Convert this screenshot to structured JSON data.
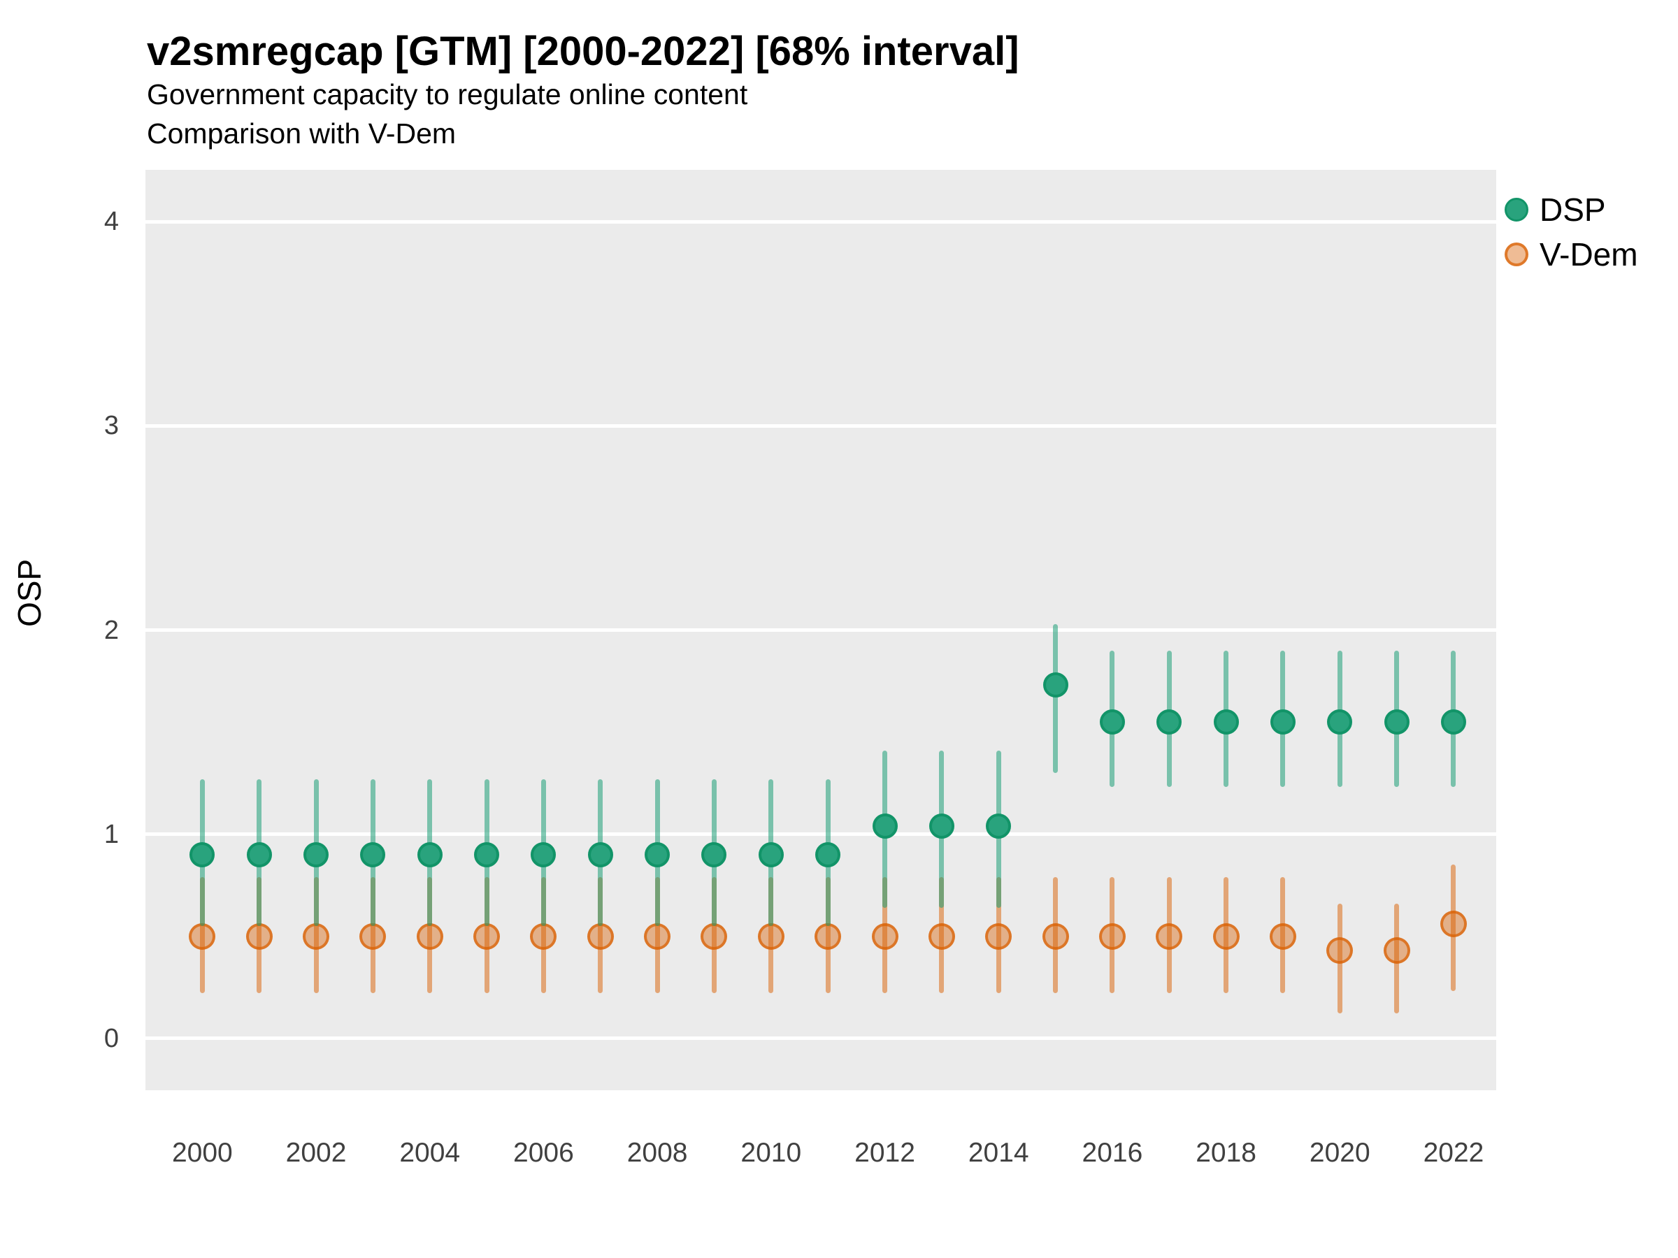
{
  "header": {
    "title": "v2smregcap [GTM] [2000-2022] [68% interval]",
    "subtitle": "Government capacity to regulate online content",
    "subtitle2": "Comparison with V-Dem"
  },
  "chart_data": {
    "type": "scatter",
    "title": "v2smregcap [GTM] [2000-2022] [68% interval]",
    "subtitle": "Government capacity to regulate online content",
    "subtitle2": "Comparison with V-Dem",
    "interval_level": "68%",
    "xlabel": "",
    "ylabel": "OSP",
    "x": [
      2000,
      2001,
      2002,
      2003,
      2004,
      2005,
      2006,
      2007,
      2008,
      2009,
      2010,
      2011,
      2012,
      2013,
      2014,
      2015,
      2016,
      2017,
      2018,
      2019,
      2020,
      2021,
      2022
    ],
    "xtick_labels": [
      "2000",
      "2002",
      "2004",
      "2006",
      "2008",
      "2010",
      "2012",
      "2014",
      "2016",
      "2018",
      "2020",
      "2022"
    ],
    "xticks": [
      2000,
      2002,
      2004,
      2006,
      2008,
      2010,
      2012,
      2014,
      2016,
      2018,
      2020,
      2022
    ],
    "yticks": [
      0,
      1,
      2,
      3,
      4
    ],
    "ytick_labels": [
      "0",
      "1",
      "2",
      "3",
      "4"
    ],
    "xlim": [
      1999.0,
      2022.75
    ],
    "ylim": [
      -0.255,
      4.255
    ],
    "grid": "major-horizontal-white-on-grey",
    "legend_position": "right",
    "series": [
      {
        "name": "DSP",
        "values": [
          0.9,
          0.9,
          0.9,
          0.9,
          0.9,
          0.9,
          0.9,
          0.9,
          0.9,
          0.9,
          0.9,
          0.9,
          1.04,
          1.04,
          1.04,
          1.73,
          1.55,
          1.55,
          1.55,
          1.55,
          1.55,
          1.55,
          1.55
        ],
        "lower": [
          0.55,
          0.55,
          0.55,
          0.55,
          0.55,
          0.55,
          0.55,
          0.55,
          0.55,
          0.55,
          0.55,
          0.55,
          0.64,
          0.64,
          0.64,
          1.3,
          1.23,
          1.23,
          1.23,
          1.23,
          1.23,
          1.23,
          1.23
        ],
        "upper": [
          1.27,
          1.27,
          1.27,
          1.27,
          1.27,
          1.27,
          1.27,
          1.27,
          1.27,
          1.27,
          1.27,
          1.27,
          1.41,
          1.41,
          1.41,
          2.03,
          1.9,
          1.9,
          1.9,
          1.9,
          1.9,
          1.9,
          1.9
        ]
      },
      {
        "name": "V-Dem",
        "values": [
          0.5,
          0.5,
          0.5,
          0.5,
          0.5,
          0.5,
          0.5,
          0.5,
          0.5,
          0.5,
          0.5,
          0.5,
          0.5,
          0.5,
          0.5,
          0.5,
          0.5,
          0.5,
          0.5,
          0.5,
          0.43,
          0.43,
          0.56
        ],
        "lower": [
          0.22,
          0.22,
          0.22,
          0.22,
          0.22,
          0.22,
          0.22,
          0.22,
          0.22,
          0.22,
          0.22,
          0.22,
          0.22,
          0.22,
          0.22,
          0.22,
          0.22,
          0.22,
          0.22,
          0.22,
          0.12,
          0.12,
          0.23
        ],
        "upper": [
          0.79,
          0.79,
          0.79,
          0.79,
          0.79,
          0.79,
          0.79,
          0.79,
          0.79,
          0.79,
          0.79,
          0.79,
          0.79,
          0.79,
          0.79,
          0.79,
          0.79,
          0.79,
          0.79,
          0.79,
          0.66,
          0.66,
          0.85
        ]
      }
    ],
    "colors": {
      "panel_background": "#EBEBEB",
      "gridline": "#FFFFFF",
      "dsp_point_fill": "#29A37D",
      "dsp_point_border": "#129468",
      "dsp_bar": "rgba(27,158,119,0.55)",
      "vdem_point_fill": "rgba(217,95,2,0.42)",
      "vdem_point_border": "rgba(217,95,2,0.72)",
      "vdem_bar": "rgba(217,95,2,0.5)",
      "tick_text": "#404040",
      "text": "#000000"
    }
  },
  "legend": {
    "items": [
      {
        "label": "DSP",
        "marker": "dsp-legend-dot"
      },
      {
        "label": "V-Dem",
        "marker": "vdem-legend-dot"
      }
    ]
  }
}
